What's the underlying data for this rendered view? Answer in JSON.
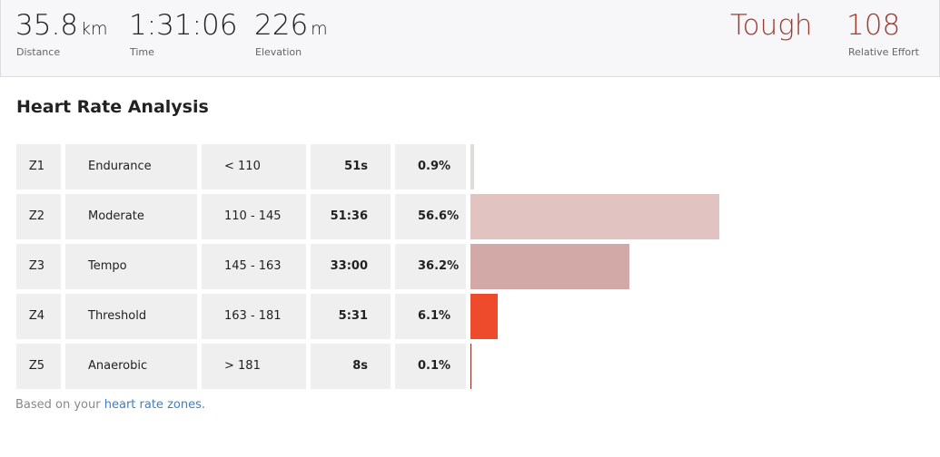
{
  "stats": [
    {
      "value": 35.8,
      "unit": "km",
      "label": "Distance"
    },
    {
      "value": "1:31:06",
      "label": "Time"
    },
    {
      "value": 226,
      "unit": "m",
      "label": "Elevation"
    }
  ],
  "effort": {
    "rating": "Tough",
    "value": 108,
    "label": "Relative Effort"
  },
  "heart_rate": {
    "title": "Heart Rate Analysis",
    "zones": [
      {
        "zone": "Z1",
        "name": "Endurance",
        "range": "< 110",
        "time": "51s",
        "percent": 0.9,
        "percent_label": "0.9%",
        "color": "#e0dcdc"
      },
      {
        "zone": "Z2",
        "name": "Moderate",
        "range": "110 - 145",
        "time": "51:36",
        "percent": 56.6,
        "percent_label": "56.6%",
        "color": "#e1c3c1"
      },
      {
        "zone": "Z3",
        "name": "Tempo",
        "range": "145 - 163",
        "time": "33:00",
        "percent": 36.2,
        "percent_label": "36.2%",
        "color": "#d3a9a8"
      },
      {
        "zone": "Z4",
        "name": "Threshold",
        "range": "163 - 181",
        "time": "5:31",
        "percent": 6.1,
        "percent_label": "6.1%",
        "color": "#ee4a2c"
      },
      {
        "zone": "Z5",
        "name": "Anaerobic",
        "range": "> 181",
        "time": "8s",
        "percent": 0.1,
        "percent_label": "0.1%",
        "color": "#8b2a1e"
      }
    ]
  },
  "footer": {
    "text": "Based on your",
    "link": "heart rate zones."
  }
}
